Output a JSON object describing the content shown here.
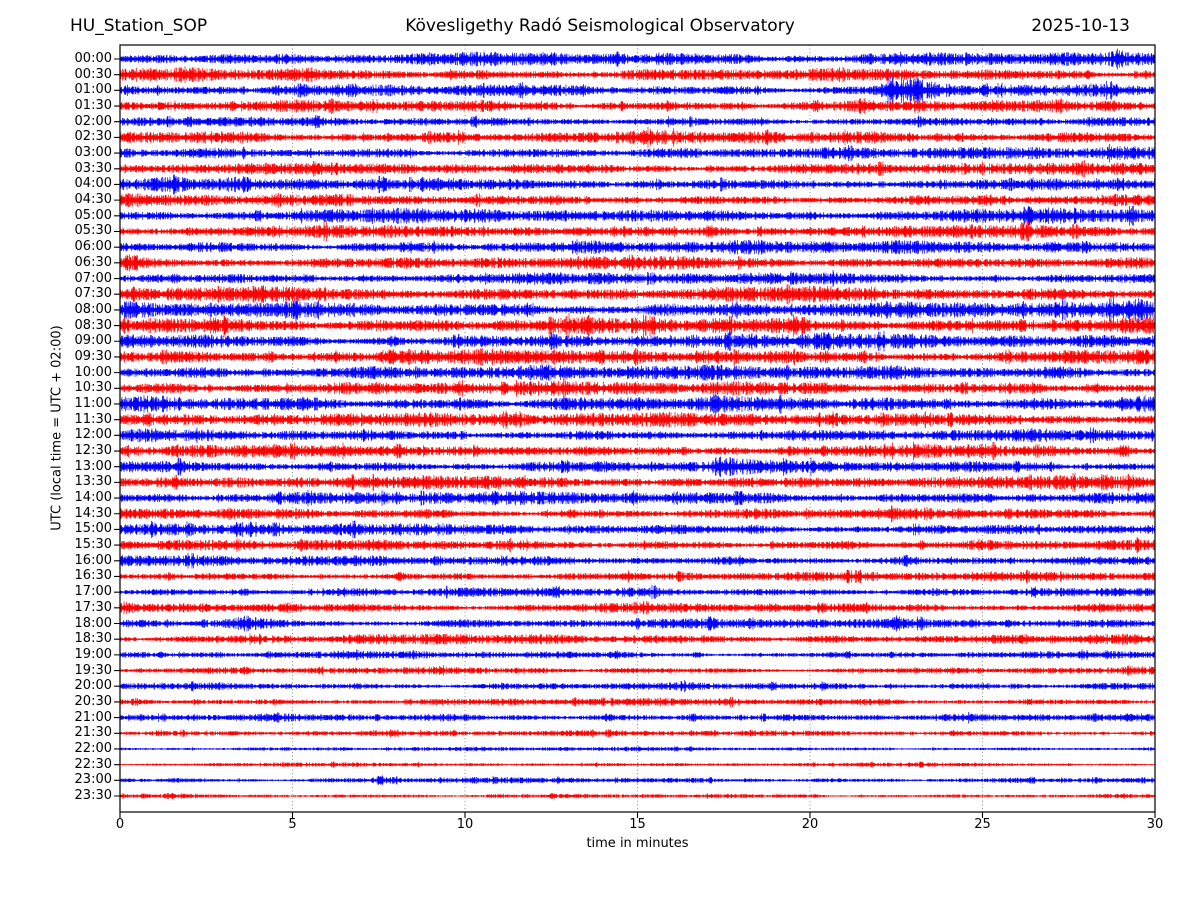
{
  "chart_data": {
    "type": "line",
    "subtype": "helicorder-dayplot",
    "station": "HU_Station_SOP",
    "title": "Kövesligethy Radó Seismological Observatory",
    "date": "2025-10-13",
    "xlabel": "time in minutes",
    "ylabel": "UTC (local time = UTC + 02:00)",
    "x_range": [
      0,
      30
    ],
    "x_ticks": [
      0,
      5,
      10,
      15,
      20,
      25,
      30
    ],
    "grid_minutes": [
      5,
      10,
      15,
      20,
      25
    ],
    "grid_style": "dotted",
    "minutes_per_line": 30,
    "n_traces": 48,
    "colors": {
      "even_trace": "#0000ff",
      "odd_trace": "#ff0000",
      "grid": "#777777",
      "frame": "#000000",
      "text": "#000000"
    },
    "rows": [
      {
        "label": "00:00",
        "color": "#0000ff",
        "amplitude": 4.5
      },
      {
        "label": "00:30",
        "color": "#ff0000",
        "amplitude": 4.0
      },
      {
        "label": "01:00",
        "color": "#0000ff",
        "amplitude": 3.8
      },
      {
        "label": "01:30",
        "color": "#ff0000",
        "amplitude": 3.8
      },
      {
        "label": "02:00",
        "color": "#0000ff",
        "amplitude": 3.4
      },
      {
        "label": "02:30",
        "color": "#ff0000",
        "amplitude": 4.2
      },
      {
        "label": "03:00",
        "color": "#0000ff",
        "amplitude": 4.0
      },
      {
        "label": "03:30",
        "color": "#ff0000",
        "amplitude": 3.8
      },
      {
        "label": "04:00",
        "color": "#0000ff",
        "amplitude": 4.2
      },
      {
        "label": "04:30",
        "color": "#ff0000",
        "amplitude": 3.8
      },
      {
        "label": "05:00",
        "color": "#0000ff",
        "amplitude": 4.6
      },
      {
        "label": "05:30",
        "color": "#ff0000",
        "amplitude": 4.0
      },
      {
        "label": "06:00",
        "color": "#0000ff",
        "amplitude": 4.2
      },
      {
        "label": "06:30",
        "color": "#ff0000",
        "amplitude": 4.2
      },
      {
        "label": "07:00",
        "color": "#0000ff",
        "amplitude": 3.8
      },
      {
        "label": "07:30",
        "color": "#ff0000",
        "amplitude": 4.8
      },
      {
        "label": "08:00",
        "color": "#0000ff",
        "amplitude": 5.2
      },
      {
        "label": "08:30",
        "color": "#ff0000",
        "amplitude": 5.2
      },
      {
        "label": "09:00",
        "color": "#0000ff",
        "amplitude": 4.8
      },
      {
        "label": "09:30",
        "color": "#ff0000",
        "amplitude": 4.8
      },
      {
        "label": "10:00",
        "color": "#0000ff",
        "amplitude": 4.6
      },
      {
        "label": "10:30",
        "color": "#ff0000",
        "amplitude": 4.4
      },
      {
        "label": "11:00",
        "color": "#0000ff",
        "amplitude": 4.8
      },
      {
        "label": "11:30",
        "color": "#ff0000",
        "amplitude": 4.4
      },
      {
        "label": "12:00",
        "color": "#0000ff",
        "amplitude": 4.0
      },
      {
        "label": "12:30",
        "color": "#ff0000",
        "amplitude": 4.0
      },
      {
        "label": "13:00",
        "color": "#0000ff",
        "amplitude": 3.8
      },
      {
        "label": "13:30",
        "color": "#ff0000",
        "amplitude": 4.2
      },
      {
        "label": "14:00",
        "color": "#0000ff",
        "amplitude": 4.2
      },
      {
        "label": "14:30",
        "color": "#ff0000",
        "amplitude": 3.4
      },
      {
        "label": "15:00",
        "color": "#0000ff",
        "amplitude": 3.8
      },
      {
        "label": "15:30",
        "color": "#ff0000",
        "amplitude": 3.4
      },
      {
        "label": "16:00",
        "color": "#0000ff",
        "amplitude": 3.4
      },
      {
        "label": "16:30",
        "color": "#ff0000",
        "amplitude": 3.0
      },
      {
        "label": "17:00",
        "color": "#0000ff",
        "amplitude": 3.0
      },
      {
        "label": "17:30",
        "color": "#ff0000",
        "amplitude": 3.2
      },
      {
        "label": "18:00",
        "color": "#0000ff",
        "amplitude": 3.2
      },
      {
        "label": "18:30",
        "color": "#ff0000",
        "amplitude": 3.2
      },
      {
        "label": "19:00",
        "color": "#0000ff",
        "amplitude": 2.4
      },
      {
        "label": "19:30",
        "color": "#ff0000",
        "amplitude": 2.2
      },
      {
        "label": "20:00",
        "color": "#0000ff",
        "amplitude": 2.4
      },
      {
        "label": "20:30",
        "color": "#ff0000",
        "amplitude": 2.4
      },
      {
        "label": "21:00",
        "color": "#0000ff",
        "amplitude": 2.4
      },
      {
        "label": "21:30",
        "color": "#ff0000",
        "amplitude": 1.8
      },
      {
        "label": "22:00",
        "color": "#0000ff",
        "amplitude": 1.4
      },
      {
        "label": "22:30",
        "color": "#ff0000",
        "amplitude": 1.4
      },
      {
        "label": "23:00",
        "color": "#0000ff",
        "amplitude": 1.8
      },
      {
        "label": "23:30",
        "color": "#ff0000",
        "amplitude": 1.4
      }
    ],
    "events": [
      {
        "row": "01:00",
        "minute": 22.2,
        "peak": 3.4,
        "rise": 0.1,
        "decay": 1.0,
        "description": "high-amplitude transient burst"
      },
      {
        "row": "13:00",
        "minute": 17.3,
        "peak": 2.6,
        "rise": 0.08,
        "decay": 0.5,
        "description": "moderate transient burst"
      },
      {
        "row": "00:30",
        "minute": 1.8,
        "peak": 1.7,
        "rise": 0.3,
        "decay": 0.5,
        "description": "small burst"
      },
      {
        "row": "08:00",
        "minute": 29.5,
        "peak": 1.7,
        "rise": 0.2,
        "decay": 0.6,
        "description": "thickened noise at trace end"
      },
      {
        "row": "11:00",
        "minute": 29.6,
        "peak": 1.7,
        "rise": 0.2,
        "decay": 0.6,
        "description": "thickened noise at trace end"
      },
      {
        "row": "18:00",
        "minute": 3.6,
        "peak": 1.9,
        "rise": 0.3,
        "decay": 0.7,
        "description": "small noise blob"
      },
      {
        "row": "18:30",
        "minute": 9.0,
        "peak": 1.5,
        "rise": 0.3,
        "decay": 0.6,
        "description": "small burst"
      },
      {
        "row": "21:00",
        "minute": 17.0,
        "peak": 1.6,
        "rise": 0.9,
        "decay": 1.6,
        "description": "broad elevated noise"
      },
      {
        "row": "23:00",
        "minute": 7.8,
        "peak": 1.6,
        "rise": 0.5,
        "decay": 1.2,
        "description": "broad elevated noise"
      }
    ]
  }
}
